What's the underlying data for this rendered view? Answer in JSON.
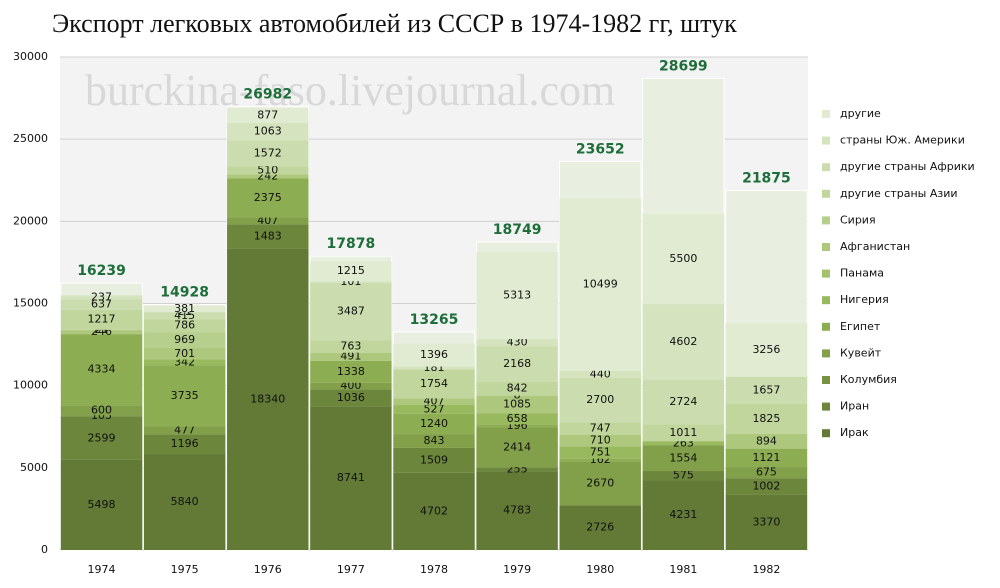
{
  "chart_data": {
    "type": "stacked_bar",
    "title": "Экспорт легковых автомобилей из СССР в 1974-1982 гг, штук",
    "watermark": "burckina-faso.livejournal.com",
    "categories": [
      "1974",
      "1975",
      "1976",
      "1977",
      "1978",
      "1979",
      "1980",
      "1981",
      "1982"
    ],
    "totals": [
      16239,
      14928,
      26982,
      17878,
      13265,
      18749,
      23652,
      28699,
      21875
    ],
    "totals_color": "#1e6e3a",
    "ylim": [
      0,
      30000
    ],
    "yticks": [
      0,
      5000,
      10000,
      15000,
      20000,
      25000,
      30000
    ],
    "grid": true,
    "series": [
      {
        "name": "Ирак",
        "color": "#627a36",
        "values": [
          5498,
          5840,
          18340,
          8741,
          4702,
          4783,
          2726,
          4231,
          3370
        ]
      },
      {
        "name": "Иран",
        "color": "#6c863b",
        "values": [
          2599,
          1196,
          1483,
          1036,
          1509,
          255,
          null,
          575,
          1002
        ]
      },
      {
        "name": "Колумбия",
        "color": "#779342",
        "values": [
          105,
          null,
          null,
          null,
          null,
          null,
          null,
          null,
          null
        ]
      },
      {
        "name": "Кувейт",
        "color": "#82a04a",
        "values": [
          600,
          477,
          407,
          400,
          843,
          2414,
          2670,
          1554,
          675
        ]
      },
      {
        "name": "Египет",
        "color": "#8dad52",
        "values": [
          4334,
          3735,
          2375,
          1338,
          1240,
          196,
          162,
          null,
          1121
        ]
      },
      {
        "name": "Нигерия",
        "color": "#98b95e",
        "values": [
          null,
          342,
          null,
          null,
          527,
          658,
          751,
          263,
          null
        ]
      },
      {
        "name": "Панама",
        "color": "#a3c26c",
        "values": [
          null,
          null,
          null,
          null,
          null,
          null,
          null,
          null,
          null
        ]
      },
      {
        "name": "Афганистан",
        "color": "#adc87c",
        "values": [
          246,
          701,
          242,
          491,
          407,
          1085,
          710,
          null,
          894
        ]
      },
      {
        "name": "Сирия",
        "color": "#b7cf8d",
        "values": [
          21,
          969,
          null,
          null,
          null,
          8,
          null,
          null,
          null
        ]
      },
      {
        "name": "другие страны Азии",
        "color": "#c1d69d",
        "values": [
          1217,
          786,
          510,
          763,
          1754,
          842,
          747,
          1011,
          1825
        ]
      },
      {
        "name": "другие страны Африки",
        "color": "#cbddae",
        "values": [
          637,
          415,
          1572,
          3487,
          null,
          2168,
          2700,
          2724,
          1657
        ]
      },
      {
        "name": "страны Юж. Америки",
        "color": "#d5e4bf",
        "values": [
          237,
          21,
          1063,
          101,
          181,
          430,
          440,
          4602,
          null
        ]
      },
      {
        "name": "другие",
        "color": "#e0ebd1",
        "values": [
          null,
          381,
          877,
          1215,
          1396,
          5313,
          10499,
          5500,
          3256
        ]
      }
    ]
  }
}
